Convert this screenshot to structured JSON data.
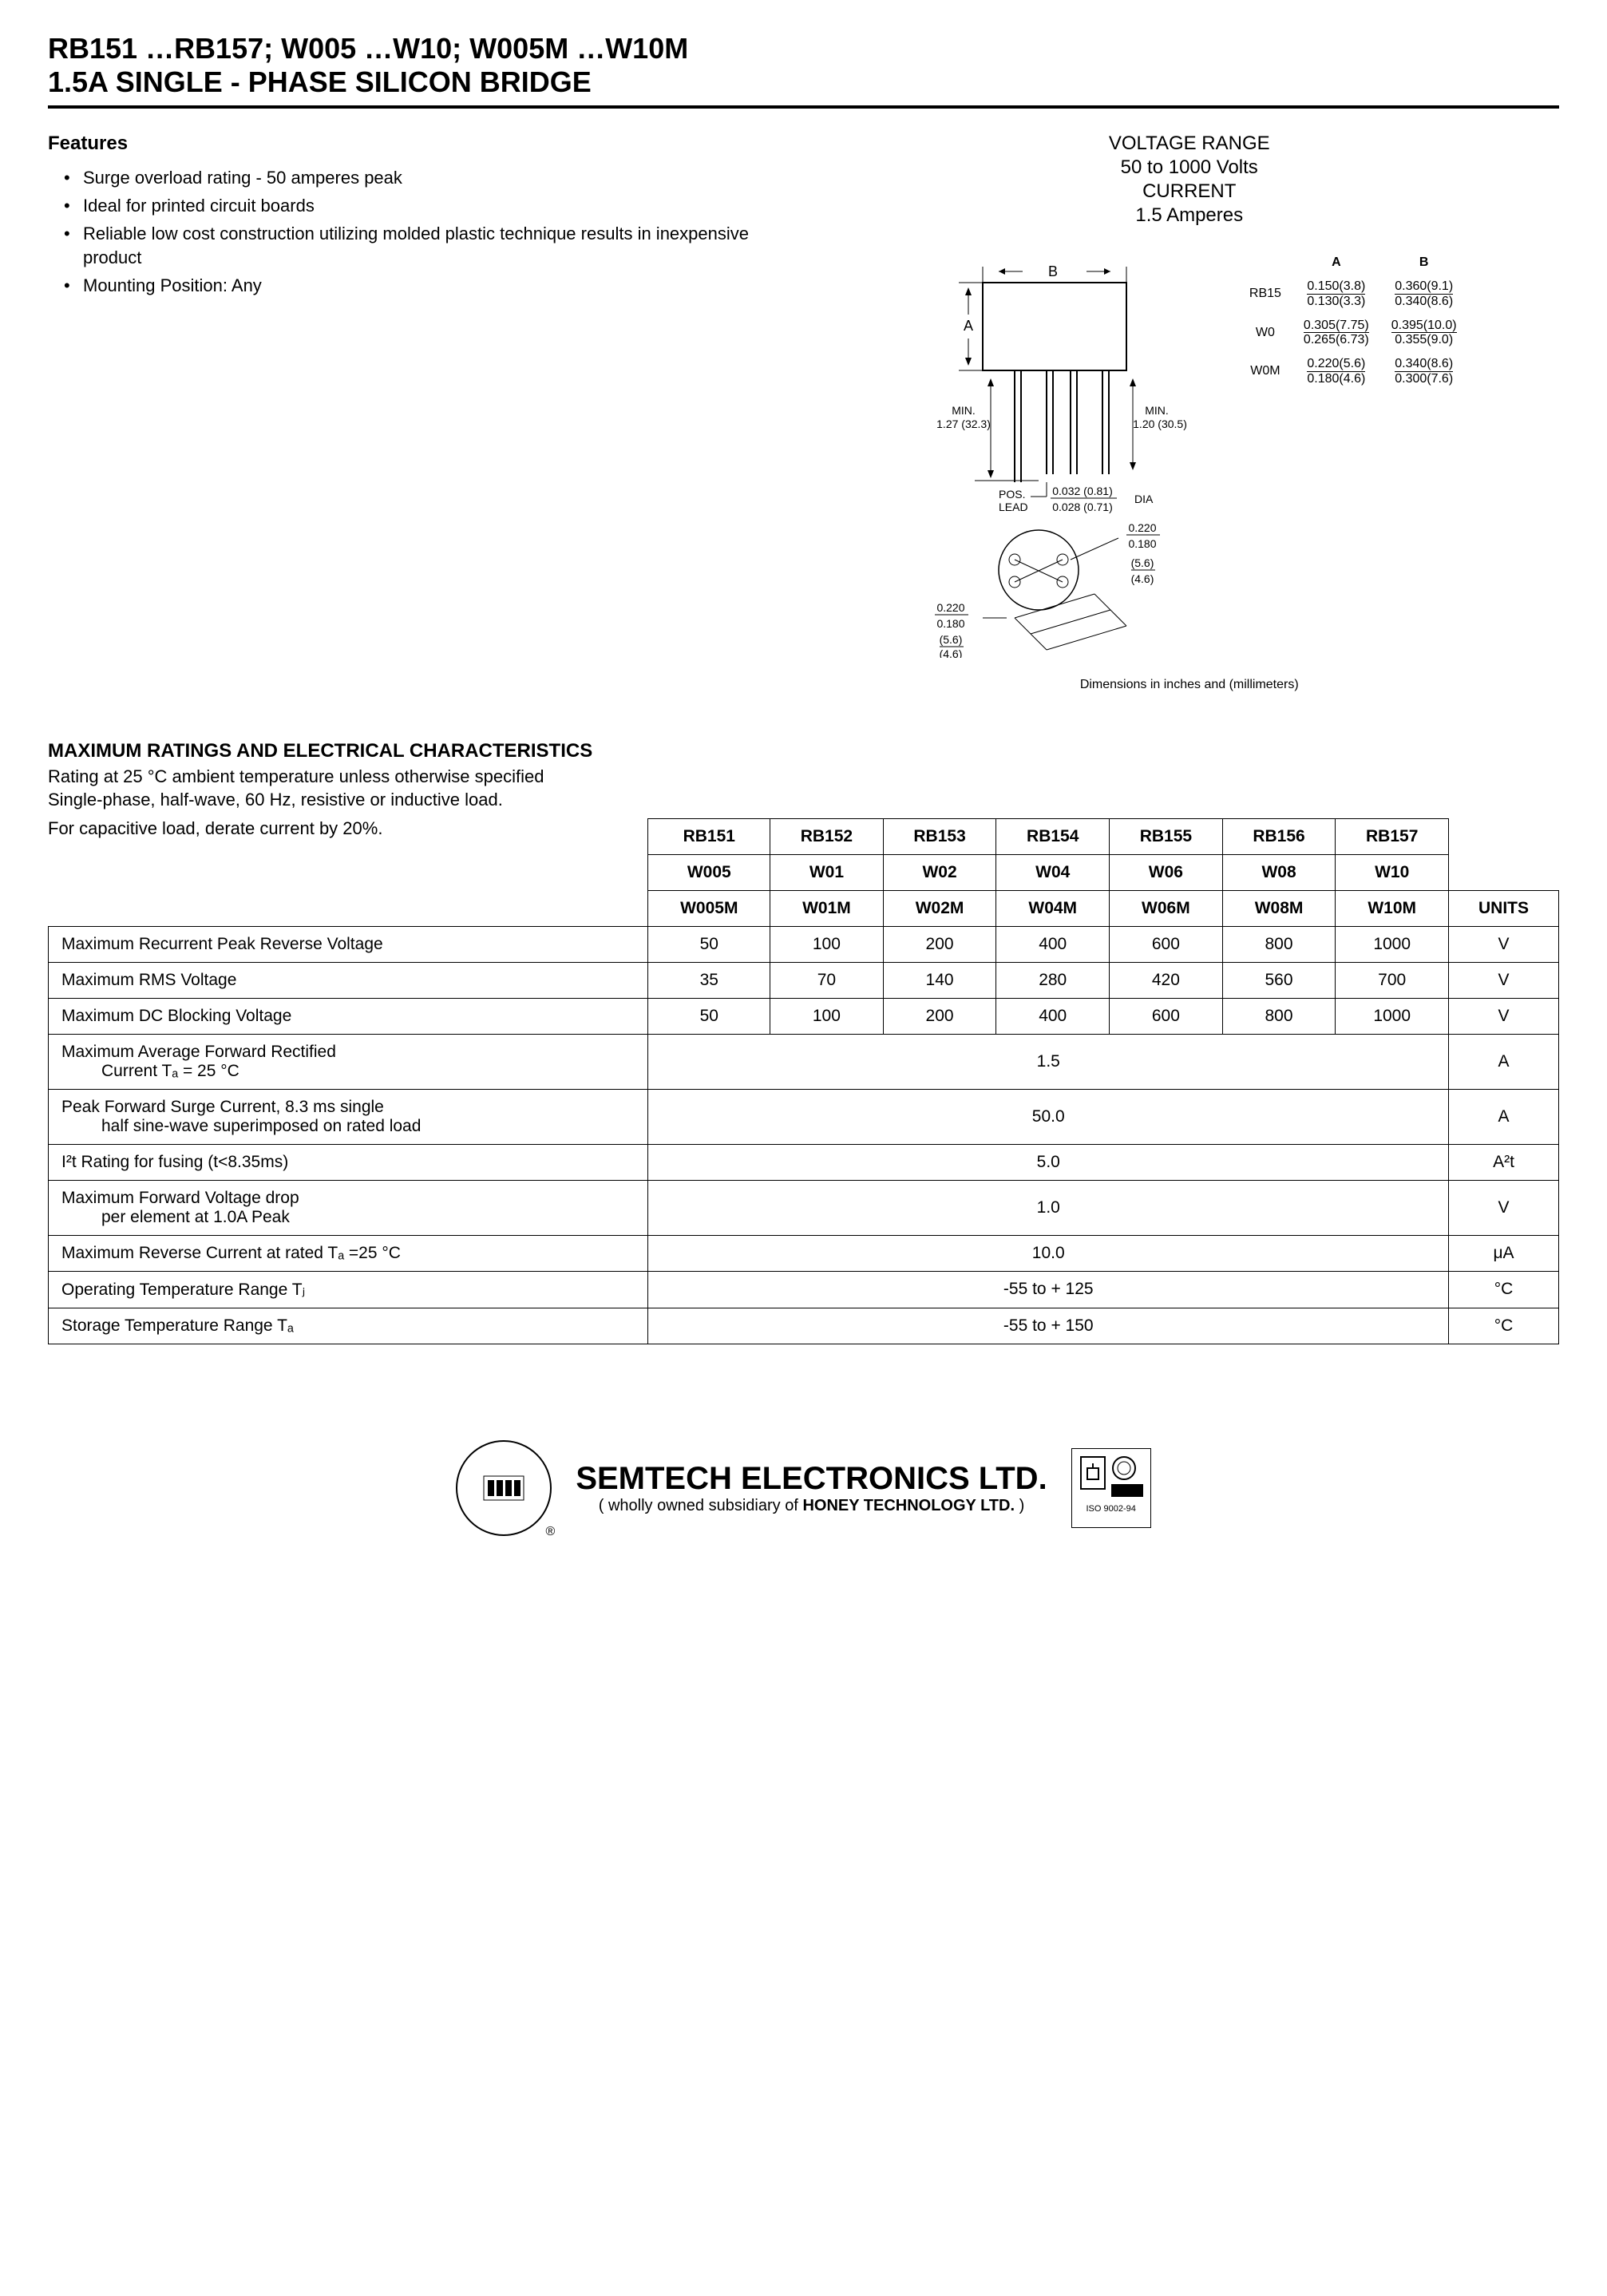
{
  "header": {
    "line1": "RB151 …RB157; W005 …W10; W005M …W10M",
    "line2": "1.5A SINGLE - PHASE SILICON BRIDGE"
  },
  "features": {
    "heading": "Features",
    "items": [
      "Surge overload rating - 50 amperes peak",
      "Ideal for printed circuit boards",
      "Reliable low cost construction utilizing molded plastic technique results in inexpensive product",
      "Mounting Position: Any"
    ]
  },
  "specs_header": {
    "line1": "VOLTAGE RANGE",
    "line2": "50 to 1000 Volts",
    "line3": "CURRENT",
    "line4": "1.5 Amperes"
  },
  "package_diagram": {
    "label_B": "B",
    "label_A": "A",
    "min_left": "MIN.",
    "min_left_val": "1.27 (32.3)",
    "min_right": "MIN.",
    "min_right_val": "1.20 (30.5)",
    "pos_lead": "POS.",
    "pos_lead2": "LEAD",
    "dia_top": "0.032 (0.81)",
    "dia_bot": "0.028 (0.71)",
    "dia_label": "DIA",
    "hole1_top": "0.220",
    "hole1_bot": "0.180",
    "hole1_mm_top": "(5.6)",
    "hole1_mm_bot": "(4.6)",
    "hole2_top": "0.220",
    "hole2_bot": "0.180",
    "hole2_mm_top": "(5.6)",
    "hole2_mm_bot": "(4.6)"
  },
  "dim_table": {
    "col_A": "A",
    "col_B": "B",
    "rows": [
      {
        "label": "RB15",
        "a_top": "0.150(3.8)",
        "a_bot": "0.130(3.3)",
        "b_top": "0.360(9.1)",
        "b_bot": "0.340(8.6)"
      },
      {
        "label": "W0",
        "a_top": "0.305(7.75)",
        "a_bot": "0.265(6.73)",
        "b_top": "0.395(10.0)",
        "b_bot": "0.355(9.0)"
      },
      {
        "label": "W0M",
        "a_top": "0.220(5.6)",
        "a_bot": "0.180(4.6)",
        "b_top": "0.340(8.6)",
        "b_bot": "0.300(7.6)"
      }
    ],
    "caption": "Dimensions in inches and (millimeters)"
  },
  "ratings": {
    "heading": "MAXIMUM RATINGS AND ELECTRICAL CHARACTERISTICS",
    "sub1": "Rating at 25 °C ambient temperature unless otherwise specified",
    "sub2": "Single-phase, half-wave, 60 Hz, resistive or inductive load.",
    "sub3": "For capacitive load, derate current by 20%.",
    "header_rows": [
      [
        "RB151",
        "RB152",
        "RB153",
        "RB154",
        "RB155",
        "RB156",
        "RB157"
      ],
      [
        "W005",
        "W01",
        "W02",
        "W04",
        "W06",
        "W08",
        "W10"
      ],
      [
        "W005M",
        "W01M",
        "W02M",
        "W04M",
        "W06M",
        "W08M",
        "W10M"
      ]
    ],
    "units_label": "UNITS",
    "data_rows": [
      {
        "param": "Maximum Recurrent Peak Reverse Voltage",
        "vals": [
          "50",
          "100",
          "200",
          "400",
          "600",
          "800",
          "1000"
        ],
        "unit": "V",
        "span": false
      },
      {
        "param": "Maximum RMS Voltage",
        "vals": [
          "35",
          "70",
          "140",
          "280",
          "420",
          "560",
          "700"
        ],
        "unit": "V",
        "span": false
      },
      {
        "param": "Maximum DC Blocking Voltage",
        "vals": [
          "50",
          "100",
          "200",
          "400",
          "600",
          "800",
          "1000"
        ],
        "unit": "V",
        "span": false
      },
      {
        "param": "Maximum Average Forward Rectified",
        "param2": "Current Tₐ = 25 °C",
        "vals": [
          "1.5"
        ],
        "unit": "A",
        "span": true
      },
      {
        "param": "Peak Forward Surge Current, 8.3 ms single",
        "param2": "half sine-wave superimposed on rated load",
        "vals": [
          "50.0"
        ],
        "unit": "A",
        "span": true
      },
      {
        "param": "I²t Rating for fusing (t<8.35ms)",
        "vals": [
          "5.0"
        ],
        "unit": "A²t",
        "span": true
      },
      {
        "param": "Maximum Forward Voltage drop",
        "param2": "per element at 1.0A Peak",
        "vals": [
          "1.0"
        ],
        "unit": "V",
        "span": true
      },
      {
        "param": "Maximum Reverse Current at rated Tₐ =25 °C",
        "vals": [
          "10.0"
        ],
        "unit": "μA",
        "span": true
      },
      {
        "param": "Operating Temperature Range Tⱼ",
        "vals": [
          "-55 to + 125"
        ],
        "unit": "°C",
        "span": true
      },
      {
        "param": "Storage Temperature Range Tₐ",
        "vals": [
          "-55 to + 150"
        ],
        "unit": "°C",
        "span": true
      }
    ]
  },
  "footer": {
    "company": "SEMTECH ELECTRONICS LTD.",
    "subsidiary_prefix": "( wholly owned subsidiary of ",
    "subsidiary_name": "HONEY TECHNOLOGY LTD.",
    "subsidiary_suffix": " )",
    "iso": "ISO 9002-94",
    "reg": "®"
  },
  "colors": {
    "text": "#000000",
    "bg": "#ffffff",
    "border": "#000000"
  }
}
